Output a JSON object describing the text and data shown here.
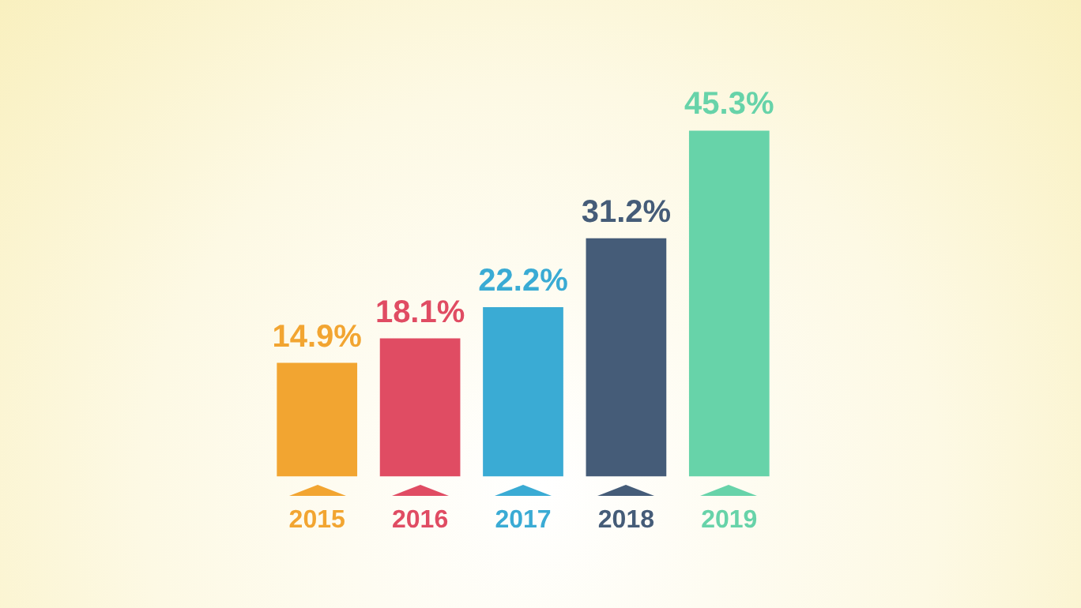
{
  "chart_data": {
    "type": "bar",
    "categories": [
      "2015",
      "2016",
      "2017",
      "2018",
      "2019"
    ],
    "values": [
      14.9,
      18.1,
      22.2,
      31.2,
      45.3
    ],
    "colors": [
      "#f2a531",
      "#e04c63",
      "#3aabd4",
      "#455c78",
      "#67d3a9"
    ],
    "value_labels": [
      "14.9%",
      "18.1%",
      "22.2%",
      "31.2%",
      "45.3%"
    ],
    "grid": false,
    "legend": false
  }
}
